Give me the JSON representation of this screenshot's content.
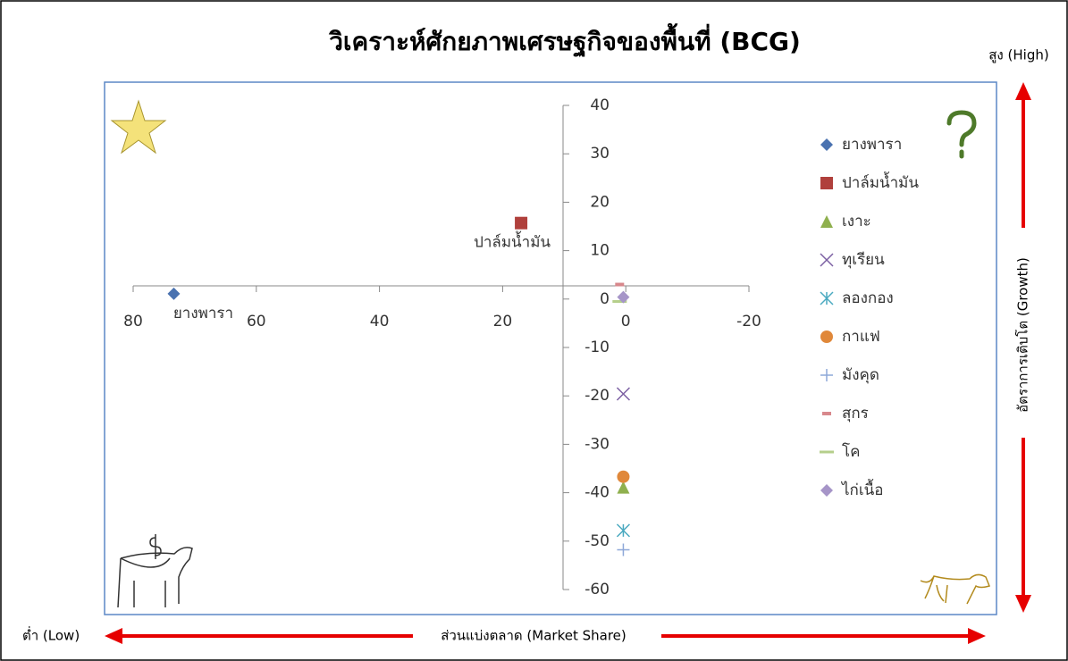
{
  "chart_data": {
    "type": "scatter",
    "title": "วิเคราะห์ศักยภาพเศรษฐกิจของพื้นที่ (BCG)",
    "y_high_label": "สูง (High)",
    "y_axis_label": "อัตราการเติบโต (Growth)",
    "x_low_label": "ต่ำ (Low)",
    "x_axis_label": "ส่วนแบ่งตลาด (Market Share)",
    "xlim": [
      80,
      -20
    ],
    "xticks": [
      80,
      60,
      40,
      20,
      0,
      -20
    ],
    "ylim": [
      -60,
      40
    ],
    "yticks": [
      -60,
      -50,
      -40,
      -30,
      -20,
      -10,
      0,
      10,
      20,
      30,
      40
    ],
    "legend": "right",
    "series": [
      {
        "name": "ยางพารา",
        "color": "#4a72b0",
        "marker": "diamond",
        "x": [
          73.4
        ],
        "values": [
          1.1
        ],
        "show_label": true
      },
      {
        "name": "ปาล์มน้ำมัน",
        "color": "#b0403c",
        "marker": "square",
        "x": [
          17
        ],
        "values": [
          15.7
        ],
        "show_label": true
      },
      {
        "name": "เงาะ",
        "color": "#8fb04e",
        "marker": "triangle",
        "x": [
          0.4
        ],
        "values": [
          -38.9
        ]
      },
      {
        "name": "ทุเรียน",
        "color": "#7b5fa2",
        "marker": "x",
        "x": [
          0.4
        ],
        "values": [
          -19.6
        ]
      },
      {
        "name": "ลองกอง",
        "color": "#4aa9c0",
        "marker": "star",
        "x": [
          0.4
        ],
        "values": [
          -47.8
        ]
      },
      {
        "name": "กาแฟ",
        "color": "#e0883a",
        "marker": "circle",
        "x": [
          0.4
        ],
        "values": [
          -36.7
        ]
      },
      {
        "name": "มังคุด",
        "color": "#8ea8d8",
        "marker": "plus",
        "x": [
          0.4
        ],
        "values": [
          -51.8
        ]
      },
      {
        "name": "สุกร",
        "color": "#d8888c",
        "marker": "dash",
        "x": [
          1
        ],
        "values": [
          3
        ]
      },
      {
        "name": "โค",
        "color": "#b5cf8b",
        "marker": "longdash",
        "x": [
          1
        ],
        "values": [
          -0.5
        ]
      },
      {
        "name": "ไก่เนื้อ",
        "color": "#a695c8",
        "marker": "diamond",
        "x": [
          0.4
        ],
        "values": [
          0.4
        ]
      }
    ]
  }
}
